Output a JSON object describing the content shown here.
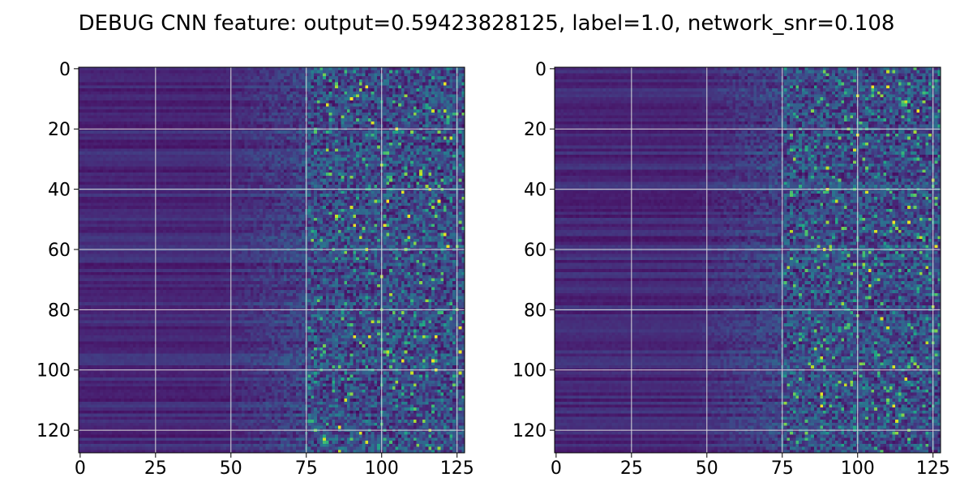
{
  "title": "DEBUG CNN feature: output=0.59423828125, label=1.0, network_snr=0.108",
  "chart_data": [
    {
      "type": "heatmap",
      "colormap": "viridis",
      "shape": [
        128,
        128
      ],
      "xlim": [
        -0.5,
        127.5
      ],
      "ylim": [
        127.5,
        -0.5
      ],
      "xticks": [
        "0",
        "25",
        "50",
        "75",
        "100",
        "125"
      ],
      "yticks": [
        "0",
        "20",
        "40",
        "60",
        "80",
        "100",
        "120"
      ],
      "grid": true,
      "description_of_values": "low uniform values for columns 0-50 with horizontal row banding, increasingly noisy bright values for columns 75-127"
    },
    {
      "type": "heatmap",
      "colormap": "viridis",
      "shape": [
        128,
        128
      ],
      "xlim": [
        -0.5,
        127.5
      ],
      "ylim": [
        127.5,
        -0.5
      ],
      "xticks": [
        "0",
        "25",
        "50",
        "75",
        "100",
        "125"
      ],
      "yticks": [
        "0",
        "20",
        "40",
        "60",
        "80",
        "100",
        "120"
      ],
      "grid": true,
      "description_of_values": "low uniform values for columns 0-50 with horizontal row banding, increasingly noisy bright values for columns 75-127"
    }
  ]
}
